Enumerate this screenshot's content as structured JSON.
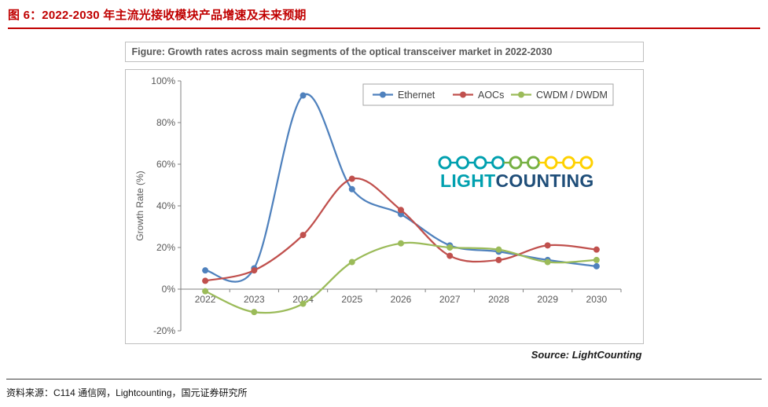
{
  "header": {
    "title": "图 6：2022-2030 年主流光接收模块产品增速及未来预期"
  },
  "figure": {
    "title": "Figure: Growth rates across main segments of the optical transceiver market in 2022-2030",
    "source_note": "Source: LightCounting"
  },
  "logo": {
    "word_primary": "LIGHT",
    "word_secondary": "COUNTING",
    "colors": {
      "primary": "#00A0AF",
      "secondary": "#1F4E79",
      "chain": [
        "#00A0AF",
        "#00A0AF",
        "#00A0AF",
        "#00A0AF",
        "#76B043",
        "#76B043",
        "#FFD100",
        "#FFD100",
        "#FFD100"
      ]
    }
  },
  "chart_data": {
    "type": "line",
    "title": "Figure: Growth rates across main segments of the optical transceiver market in 2022-2030",
    "categories": [
      "2022",
      "2023",
      "2024",
      "2025",
      "2026",
      "2027",
      "2028",
      "2029",
      "2030"
    ],
    "series": [
      {
        "name": "Ethernet",
        "color": "#4F81BD",
        "values": [
          9,
          10,
          93,
          48,
          36,
          21,
          18,
          14,
          11
        ]
      },
      {
        "name": "AOCs",
        "color": "#C0504D",
        "values": [
          4,
          9,
          26,
          53,
          38,
          16,
          14,
          21,
          19
        ]
      },
      {
        "name": "CWDM / DWDM",
        "color": "#9BBB59",
        "values": [
          -1,
          -11,
          -7,
          13,
          22,
          20,
          19,
          13,
          14
        ]
      }
    ],
    "xlabel": "",
    "ylabel": "Growth Rate (%)",
    "ylim": [
      -20,
      100
    ],
    "ytick_step": 20,
    "ytick_suffix": "%",
    "grid": false,
    "legend_position": "top-right-inside",
    "axis_color": "#808080",
    "text_color": "#595959"
  },
  "footer": {
    "source_line": "资料来源：C114 通信网，Lightcounting，国元证券研究所"
  }
}
